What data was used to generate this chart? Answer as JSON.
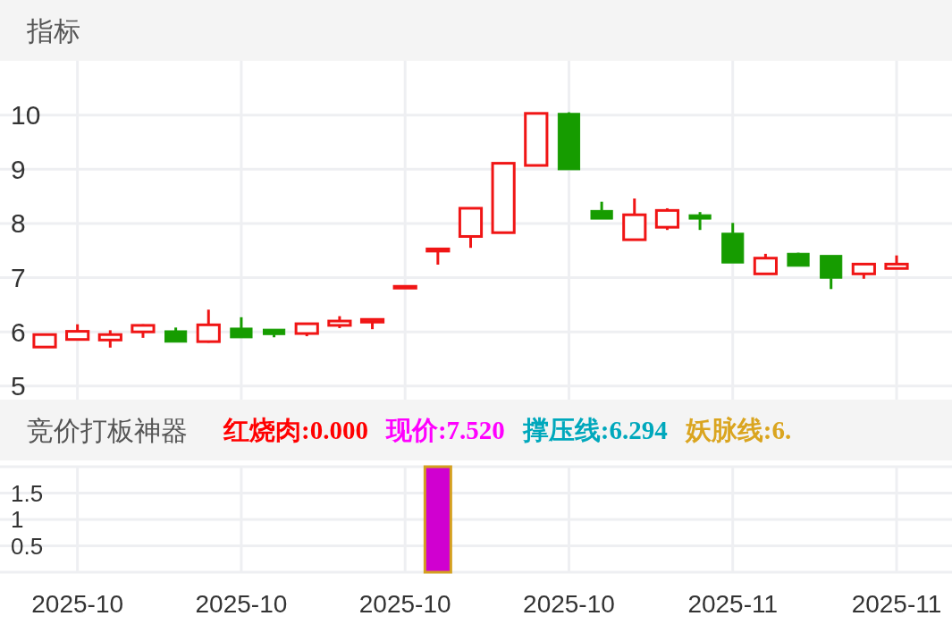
{
  "chart_data": [
    {
      "type": "candlestick",
      "title": "指标",
      "categories": [
        null,
        "2025-10",
        null,
        null,
        null,
        null,
        "2025-10",
        null,
        null,
        null,
        null,
        "2025-10",
        null,
        null,
        null,
        null,
        "2025-10",
        null,
        null,
        null,
        null,
        "2025-11",
        null,
        null,
        null,
        null,
        "2025-11"
      ],
      "ohlc": [
        [
          5.72,
          5.95,
          5.72,
          5.95
        ],
        [
          5.86,
          6.14,
          5.86,
          6.01
        ],
        [
          5.85,
          6.03,
          5.71,
          5.95
        ],
        [
          6.0,
          6.14,
          5.89,
          6.12
        ],
        [
          6.02,
          6.08,
          5.81,
          5.81
        ],
        [
          5.82,
          6.41,
          5.8,
          6.13
        ],
        [
          6.07,
          6.27,
          5.89,
          5.89
        ],
        [
          6.05,
          6.05,
          5.9,
          5.95
        ],
        [
          5.97,
          6.15,
          5.92,
          6.15
        ],
        [
          6.12,
          6.29,
          6.07,
          6.2
        ],
        [
          6.18,
          6.23,
          6.05,
          6.23
        ],
        [
          6.81,
          6.84,
          6.81,
          6.84
        ],
        [
          7.49,
          7.53,
          7.24,
          7.53
        ],
        [
          7.76,
          8.28,
          7.55,
          8.28
        ],
        [
          7.83,
          9.11,
          7.83,
          9.11
        ],
        [
          9.07,
          10.03,
          9.07,
          10.03
        ],
        [
          10.03,
          10.05,
          8.99,
          8.99
        ],
        [
          8.24,
          8.4,
          8.08,
          8.08
        ],
        [
          7.7,
          8.46,
          7.7,
          8.16
        ],
        [
          7.93,
          8.28,
          7.88,
          8.24
        ],
        [
          8.16,
          8.21,
          7.88,
          8.08
        ],
        [
          7.82,
          8.01,
          7.27,
          7.27
        ],
        [
          7.07,
          7.44,
          7.07,
          7.36
        ],
        [
          7.45,
          7.46,
          7.21,
          7.21
        ],
        [
          7.41,
          7.41,
          6.79,
          6.99
        ],
        [
          7.07,
          7.25,
          6.98,
          7.25
        ],
        [
          7.17,
          7.41,
          7.17,
          7.25
        ]
      ],
      "colors": [
        "#f01515",
        "#f01515",
        "#f01515",
        "#f01515",
        "#169c00",
        "#f01515",
        "#169c00",
        "#169c00",
        "#f01515",
        "#f01515",
        "#f01515",
        "#f01515",
        "#f01515",
        "#f01515",
        "#f01515",
        "#f01515",
        "#169c00",
        "#169c00",
        "#f01515",
        "#f01515",
        "#169c00",
        "#169c00",
        "#f01515",
        "#169c00",
        "#169c00",
        "#f01515",
        "#f01515"
      ],
      "ylim": [
        4.75,
        11
      ],
      "yticks": [
        5,
        6,
        7,
        8,
        9,
        10
      ],
      "grid": true,
      "tick_labels": "y"
    },
    {
      "type": "bar",
      "title": "竞价打板神器",
      "annotations": [
        "红烧肉:0.000",
        "现价:7.520",
        "撑压线:6.294",
        "妖脉线:6."
      ],
      "categories": [
        null,
        "2025-10",
        null,
        null,
        null,
        null,
        "2025-10",
        null,
        null,
        null,
        null,
        "2025-10",
        null,
        null,
        null,
        null,
        "2025-10",
        null,
        null,
        null,
        null,
        "2025-11",
        null,
        null,
        null,
        null,
        "2025-11"
      ],
      "values": [
        null,
        null,
        null,
        null,
        null,
        null,
        null,
        null,
        null,
        null,
        null,
        null,
        2,
        null,
        null,
        null,
        null,
        null,
        null,
        null,
        null,
        null,
        null,
        null,
        null,
        null,
        null
      ],
      "color": "#d000d0",
      "ylim": [
        0,
        2
      ],
      "yticks": [
        {
          "value": 0,
          "label": null
        },
        0.5,
        1,
        1.5,
        {
          "value": 2,
          "label": null
        }
      ],
      "grid": true
    }
  ]
}
